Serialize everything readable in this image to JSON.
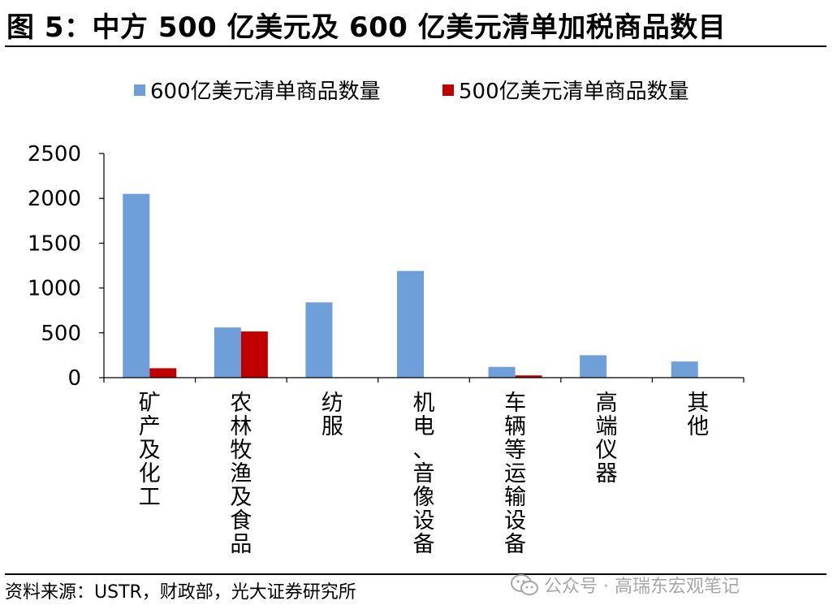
{
  "figure": {
    "title": "图 5：中方 500 亿美元及 600 亿美元清单加税商品数目",
    "source": "资料来源：USTR，财政部，光大证券研究所",
    "watermark": "公众号 · 高瑞东宏观笔记"
  },
  "chart_data": {
    "type": "bar",
    "title": "",
    "xlabel": "",
    "ylabel": "",
    "ylim": [
      0,
      2500
    ],
    "yticks": [
      0,
      500,
      1000,
      1500,
      2000,
      2500
    ],
    "grid": false,
    "legend_position": "top",
    "categories": [
      "矿产及化工",
      "农林牧渔及食品",
      "纺服",
      "机电、音像设备",
      "车辆等运输设备",
      "高端仪器",
      "其他"
    ],
    "series": [
      {
        "name": "600亿美元清单商品数量",
        "color": "#6f9fd8",
        "values": [
          2050,
          560,
          840,
          1190,
          120,
          250,
          180
        ]
      },
      {
        "name": "500亿美元清单商品数量",
        "color": "#c00000",
        "values": [
          105,
          515,
          0,
          0,
          25,
          5,
          0
        ]
      }
    ]
  }
}
